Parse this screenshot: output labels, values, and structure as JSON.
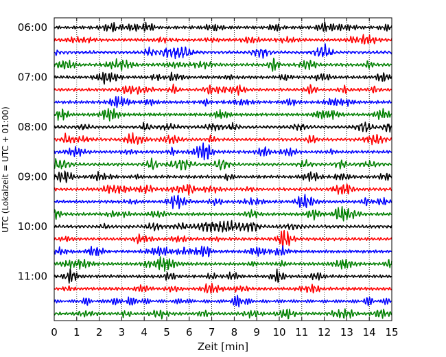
{
  "chart_data": {
    "type": "line",
    "title": "",
    "xlabel": "Zeit  [min]",
    "ylabel": "UTC (Lokalzeit = UTC + 01:00)",
    "xlim": [
      0,
      15
    ],
    "x_ticks": [
      "0",
      "1",
      "2",
      "3",
      "4",
      "5",
      "6",
      "7",
      "8",
      "9",
      "10",
      "11",
      "12",
      "13",
      "14",
      "15"
    ],
    "y_ticks": [
      "06:00",
      "07:00",
      "08:00",
      "09:00",
      "10:00",
      "11:00"
    ],
    "ylim": [
      "06:00",
      "12:00"
    ],
    "trace_interval_min": 15,
    "grid": "vertical dotted at each minute",
    "colors_cycle": [
      "#000000",
      "#ff0000",
      "#0000ff",
      "#008000"
    ],
    "traces": [
      {
        "start": "06:00",
        "color": "#000000"
      },
      {
        "start": "06:15",
        "color": "#ff0000"
      },
      {
        "start": "06:30",
        "color": "#0000ff"
      },
      {
        "start": "06:45",
        "color": "#008000"
      },
      {
        "start": "07:00",
        "color": "#000000"
      },
      {
        "start": "07:15",
        "color": "#ff0000"
      },
      {
        "start": "07:30",
        "color": "#0000ff"
      },
      {
        "start": "07:45",
        "color": "#008000"
      },
      {
        "start": "08:00",
        "color": "#000000"
      },
      {
        "start": "08:15",
        "color": "#ff0000"
      },
      {
        "start": "08:30",
        "color": "#0000ff"
      },
      {
        "start": "08:45",
        "color": "#008000"
      },
      {
        "start": "09:00",
        "color": "#000000"
      },
      {
        "start": "09:15",
        "color": "#ff0000"
      },
      {
        "start": "09:30",
        "color": "#0000ff"
      },
      {
        "start": "09:45",
        "color": "#008000"
      },
      {
        "start": "10:00",
        "color": "#000000"
      },
      {
        "start": "10:15",
        "color": "#ff0000"
      },
      {
        "start": "10:30",
        "color": "#0000ff"
      },
      {
        "start": "10:45",
        "color": "#008000"
      },
      {
        "start": "11:00",
        "color": "#000000"
      },
      {
        "start": "11:15",
        "color": "#ff0000"
      },
      {
        "start": "11:30",
        "color": "#0000ff"
      },
      {
        "start": "11:45",
        "color": "#008000"
      }
    ]
  }
}
